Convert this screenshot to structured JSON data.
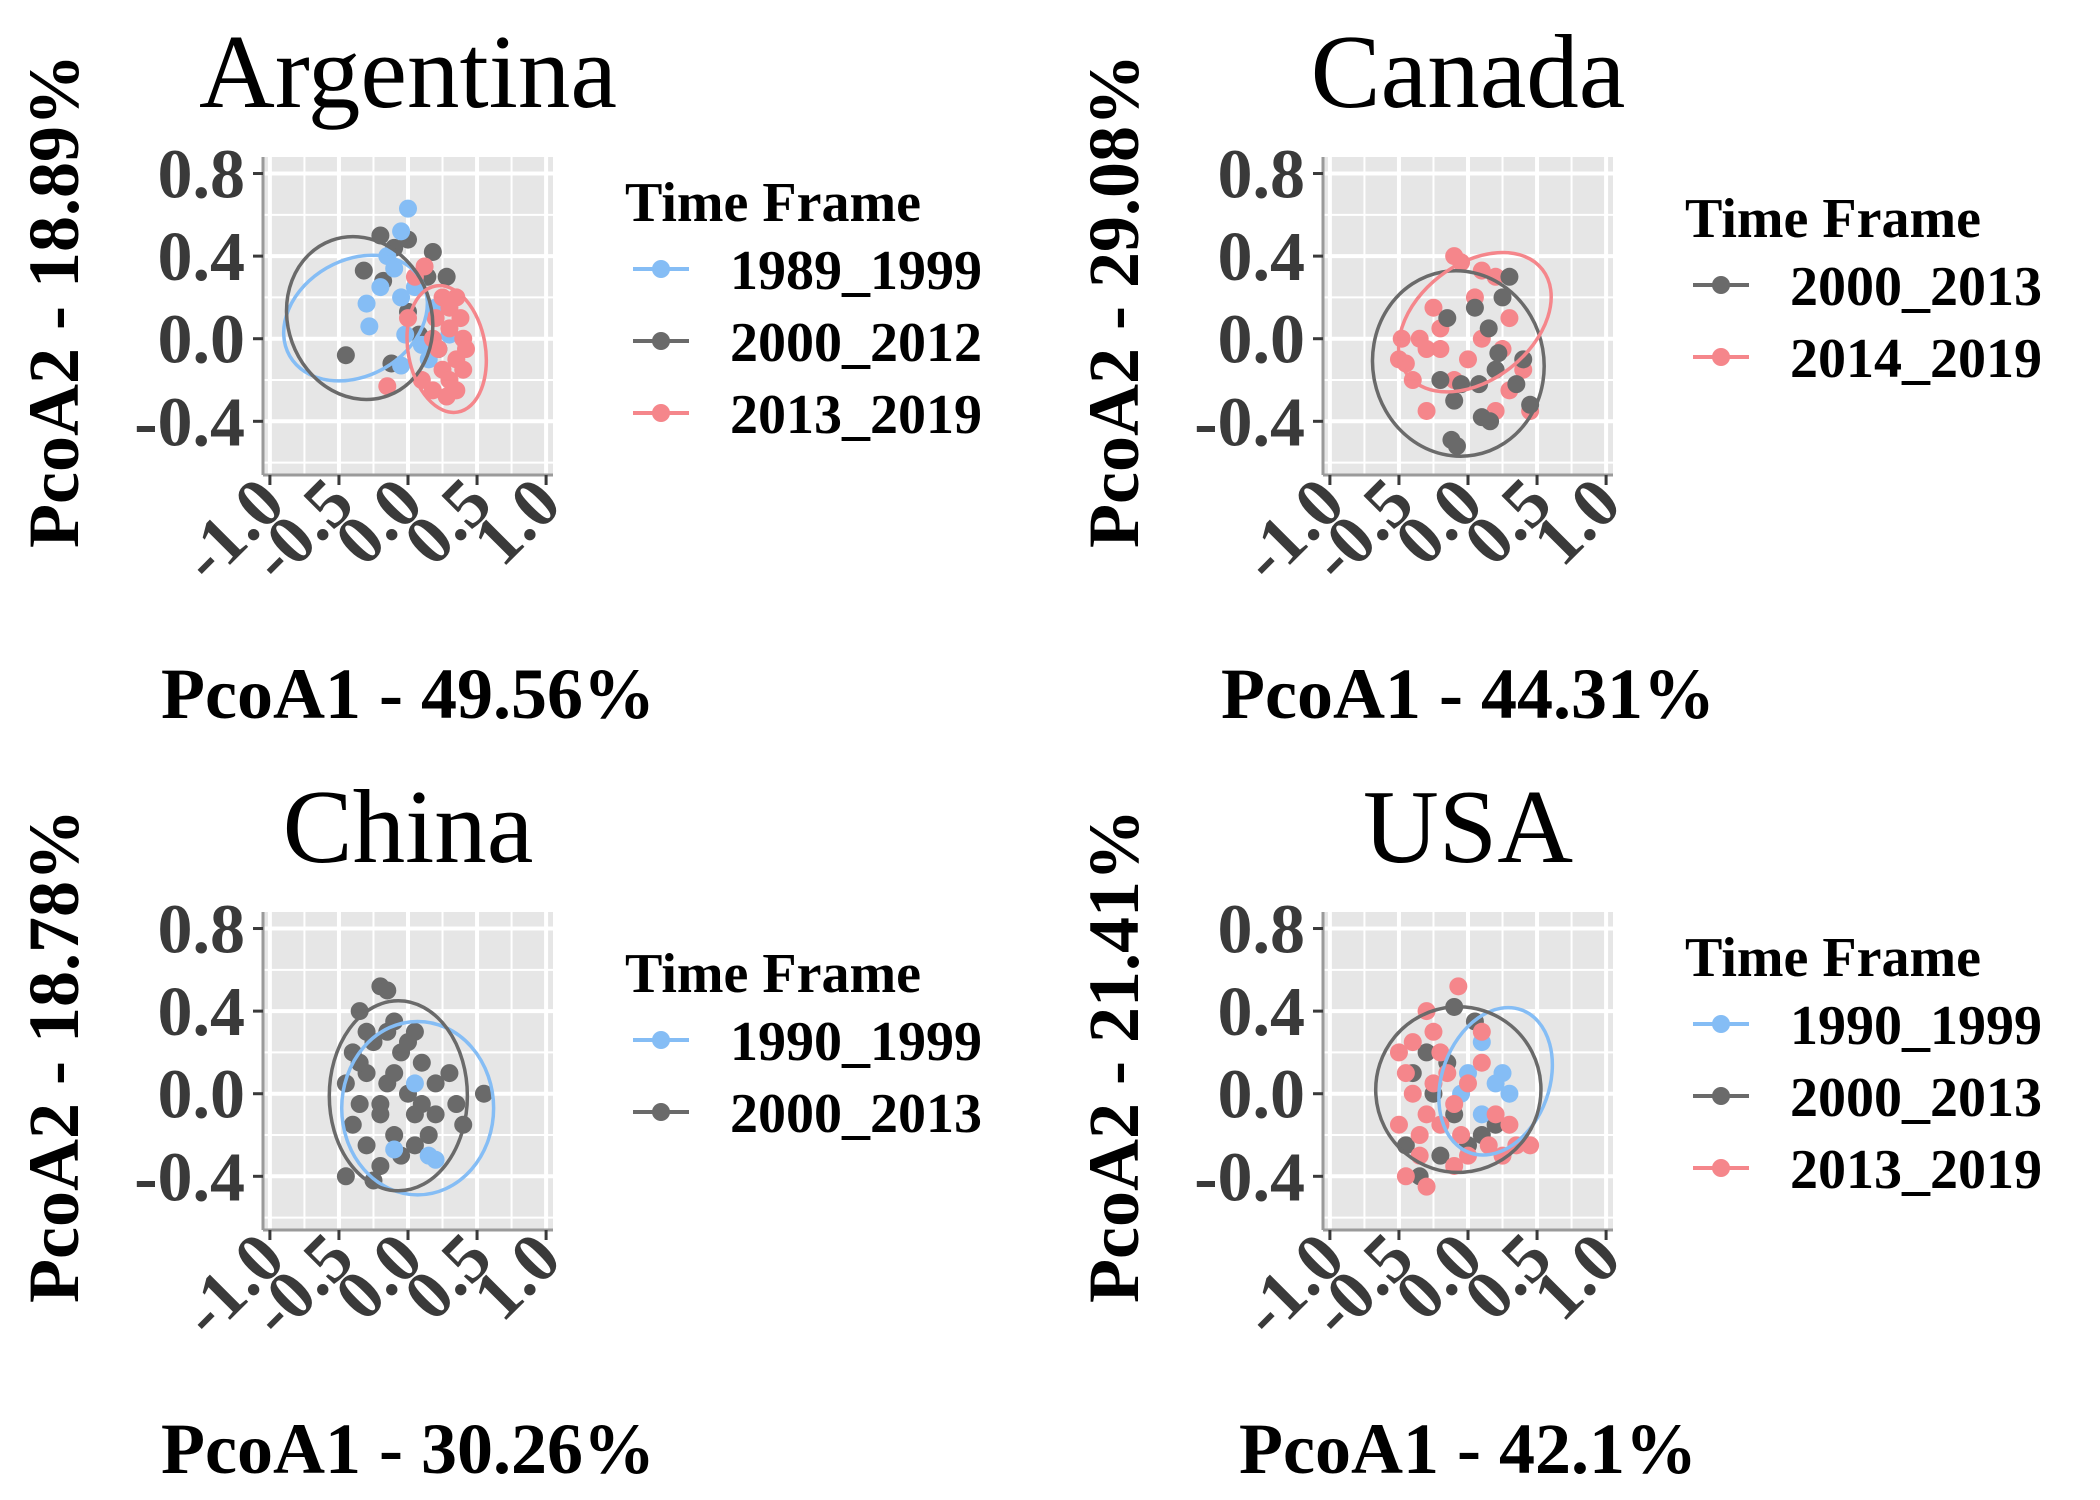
{
  "colors": {
    "blue": "#85BDF5",
    "gray": "#6A6A6A",
    "pink": "#F5868B",
    "panel_bg": "#E6E6E6",
    "grid": "#FFFFFF"
  },
  "chart_data": [
    {
      "type": "scatter",
      "title": "Argentina",
      "xlabel": "PcoA1 - 49.56%",
      "ylabel": "PcoA2 - 18.89%",
      "xlim": [
        -1.05,
        1.05
      ],
      "ylim": [
        -0.66,
        0.88
      ],
      "xticks": [
        -1.0,
        -0.5,
        0.0,
        0.5,
        1.0
      ],
      "xtick_labels": [
        "-1.0",
        "-0.5",
        "0.0",
        "0.5",
        "1.0"
      ],
      "yticks": [
        -0.4,
        0.0,
        0.4,
        0.8
      ],
      "ytick_labels": [
        "-0.4",
        "0.0",
        "0.4",
        "0.8"
      ],
      "grid": true,
      "legend": {
        "title": "Time Frame",
        "placement": "right"
      },
      "series": [
        {
          "name": "1989_1999",
          "color": "blue",
          "ellipse": {
            "cx": -0.38,
            "cy": 0.1,
            "rx": 0.55,
            "ry": 0.28,
            "angle": -30
          },
          "points": [
            [
              0.0,
              0.63
            ],
            [
              -0.05,
              0.52
            ],
            [
              -0.15,
              0.4
            ],
            [
              -0.1,
              0.34
            ],
            [
              -0.3,
              0.17
            ],
            [
              -0.28,
              0.06
            ],
            [
              -0.05,
              0.2
            ],
            [
              0.05,
              0.25
            ],
            [
              0.3,
              0.02
            ],
            [
              0.1,
              -0.03
            ],
            [
              -0.05,
              -0.13
            ],
            [
              0.15,
              -0.1
            ],
            [
              -0.02,
              0.02
            ],
            [
              0.2,
              0.15
            ],
            [
              -0.2,
              0.25
            ]
          ]
        },
        {
          "name": "2000_2012",
          "color": "gray",
          "ellipse": {
            "cx": -0.35,
            "cy": 0.1,
            "rx": 0.52,
            "ry": 0.4,
            "angle": -20
          },
          "points": [
            [
              -0.45,
              -0.08
            ],
            [
              -0.32,
              0.33
            ],
            [
              -0.2,
              0.5
            ],
            [
              -0.1,
              0.44
            ],
            [
              0.0,
              0.48
            ],
            [
              0.18,
              0.42
            ],
            [
              0.14,
              0.3
            ],
            [
              0.28,
              0.3
            ],
            [
              -0.12,
              -0.12
            ],
            [
              0.08,
              0.02
            ],
            [
              0.22,
              -0.05
            ],
            [
              0.0,
              0.13
            ],
            [
              -0.18,
              0.28
            ]
          ]
        },
        {
          "name": "2013_2019",
          "color": "pink",
          "ellipse": {
            "cx": 0.28,
            "cy": -0.05,
            "rx": 0.28,
            "ry": 0.31,
            "angle": -10
          },
          "points": [
            [
              0.3,
              0.15
            ],
            [
              0.38,
              0.1
            ],
            [
              0.3,
              0.05
            ],
            [
              0.4,
              0.0
            ],
            [
              0.22,
              -0.05
            ],
            [
              0.35,
              -0.1
            ],
            [
              0.25,
              -0.15
            ],
            [
              0.4,
              -0.15
            ],
            [
              0.3,
              -0.2
            ],
            [
              0.18,
              -0.25
            ],
            [
              0.35,
              -0.25
            ],
            [
              0.05,
              0.3
            ],
            [
              0.12,
              0.35
            ],
            [
              0.25,
              0.2
            ],
            [
              0.18,
              0.0
            ],
            [
              0.42,
              -0.05
            ],
            [
              0.1,
              -0.2
            ],
            [
              0.0,
              0.1
            ],
            [
              -0.15,
              -0.23
            ],
            [
              0.28,
              -0.28
            ],
            [
              0.35,
              0.2
            ],
            [
              0.2,
              0.1
            ]
          ]
        }
      ]
    },
    {
      "type": "scatter",
      "title": "Canada",
      "xlabel": "PcoA1 - 44.31%",
      "ylabel": "PcoA2 - 29.08%",
      "xlim": [
        -1.05,
        1.05
      ],
      "ylim": [
        -0.66,
        0.88
      ],
      "xticks": [
        -1.0,
        -0.5,
        0.0,
        0.5,
        1.0
      ],
      "xtick_labels": [
        "-1.0",
        "-0.5",
        "0.0",
        "0.5",
        "1.0"
      ],
      "yticks": [
        -0.4,
        0.0,
        0.4,
        0.8
      ],
      "ytick_labels": [
        "-0.4",
        "0.0",
        "0.4",
        "0.8"
      ],
      "grid": true,
      "legend": {
        "title": "Time Frame",
        "placement": "right"
      },
      "series": [
        {
          "name": "2000_2013",
          "color": "gray",
          "ellipse": {
            "cx": -0.07,
            "cy": -0.12,
            "rx": 0.62,
            "ry": 0.45,
            "angle": -10
          },
          "points": [
            [
              -0.08,
              -0.52
            ],
            [
              -0.12,
              -0.49
            ],
            [
              0.1,
              -0.38
            ],
            [
              0.16,
              -0.4
            ],
            [
              -0.1,
              -0.3
            ],
            [
              -0.05,
              -0.22
            ],
            [
              0.08,
              -0.22
            ],
            [
              0.35,
              -0.22
            ],
            [
              0.45,
              -0.32
            ],
            [
              -0.2,
              -0.2
            ],
            [
              0.22,
              -0.07
            ],
            [
              0.15,
              0.05
            ],
            [
              0.05,
              0.15
            ],
            [
              -0.15,
              0.1
            ],
            [
              0.3,
              0.3
            ],
            [
              0.25,
              0.2
            ],
            [
              0.4,
              -0.1
            ],
            [
              0.2,
              -0.15
            ]
          ]
        },
        {
          "name": "2014_2019",
          "color": "pink",
          "ellipse": {
            "cx": 0.05,
            "cy": 0.08,
            "rx": 0.62,
            "ry": 0.28,
            "angle": -38
          },
          "points": [
            [
              -0.1,
              0.4
            ],
            [
              -0.05,
              0.37
            ],
            [
              0.1,
              0.33
            ],
            [
              0.2,
              0.3
            ],
            [
              -0.5,
              -0.1
            ],
            [
              -0.48,
              0.0
            ],
            [
              -0.35,
              0.0
            ],
            [
              -0.2,
              0.05
            ],
            [
              -0.3,
              -0.05
            ],
            [
              -0.4,
              -0.2
            ],
            [
              -0.3,
              -0.35
            ],
            [
              -0.1,
              -0.2
            ],
            [
              0.0,
              -0.1
            ],
            [
              -0.2,
              -0.05
            ],
            [
              0.1,
              0.0
            ],
            [
              0.3,
              0.1
            ],
            [
              0.4,
              -0.15
            ],
            [
              0.3,
              -0.25
            ],
            [
              0.45,
              -0.35
            ],
            [
              0.25,
              -0.05
            ],
            [
              -0.25,
              0.15
            ],
            [
              0.05,
              0.2
            ],
            [
              0.2,
              -0.35
            ],
            [
              -0.45,
              -0.12
            ]
          ]
        }
      ]
    },
    {
      "type": "scatter",
      "title": "China",
      "xlabel": "PcoA1 - 30.26%",
      "ylabel": "PcoA2 - 18.78%",
      "xlim": [
        -1.05,
        1.05
      ],
      "ylim": [
        -0.66,
        0.88
      ],
      "xticks": [
        -1.0,
        -0.5,
        0.0,
        0.5,
        1.0
      ],
      "xtick_labels": [
        "-1.0",
        "-0.5",
        "0.0",
        "0.5",
        "1.0"
      ],
      "yticks": [
        -0.4,
        0.0,
        0.4,
        0.8
      ],
      "ytick_labels": [
        "-0.4",
        "0.0",
        "0.4",
        "0.8"
      ],
      "grid": true,
      "legend": {
        "title": "Time Frame",
        "placement": "right"
      },
      "series": [
        {
          "name": "1990_1999",
          "color": "blue",
          "ellipse": {
            "cx": 0.07,
            "cy": -0.07,
            "rx": 0.55,
            "ry": 0.42,
            "angle": 0
          },
          "points": [
            [
              0.15,
              -0.3
            ],
            [
              0.2,
              -0.32
            ],
            [
              -0.1,
              -0.27
            ],
            [
              0.05,
              0.05
            ]
          ]
        },
        {
          "name": "2000_2013",
          "color": "gray",
          "ellipse": {
            "cx": -0.07,
            "cy": -0.01,
            "rx": 0.5,
            "ry": 0.46,
            "angle": 0
          },
          "points": [
            [
              -0.2,
              0.52
            ],
            [
              -0.15,
              0.5
            ],
            [
              -0.35,
              0.4
            ],
            [
              -0.1,
              0.35
            ],
            [
              0.05,
              0.3
            ],
            [
              -0.25,
              0.25
            ],
            [
              -0.4,
              0.2
            ],
            [
              -0.05,
              0.2
            ],
            [
              0.1,
              0.15
            ],
            [
              -0.3,
              0.1
            ],
            [
              -0.45,
              0.05
            ],
            [
              -0.15,
              0.05
            ],
            [
              0.0,
              0.0
            ],
            [
              0.2,
              0.05
            ],
            [
              -0.35,
              -0.05
            ],
            [
              -0.2,
              -0.1
            ],
            [
              0.05,
              -0.1
            ],
            [
              -0.4,
              -0.15
            ],
            [
              -0.1,
              -0.2
            ],
            [
              0.15,
              -0.2
            ],
            [
              -0.3,
              -0.25
            ],
            [
              -0.2,
              -0.35
            ],
            [
              -0.05,
              -0.3
            ],
            [
              -0.45,
              -0.4
            ],
            [
              -0.25,
              -0.42
            ],
            [
              0.35,
              -0.05
            ],
            [
              0.3,
              0.1
            ],
            [
              -0.1,
              0.1
            ],
            [
              -0.2,
              -0.05
            ],
            [
              0.1,
              -0.05
            ],
            [
              -0.3,
              0.3
            ],
            [
              0.0,
              0.25
            ],
            [
              0.55,
              0.0
            ],
            [
              0.4,
              -0.15
            ],
            [
              -0.15,
              0.3
            ],
            [
              0.05,
              -0.25
            ],
            [
              -0.35,
              0.15
            ],
            [
              0.2,
              -0.1
            ]
          ]
        }
      ]
    },
    {
      "type": "scatter",
      "title": "USA",
      "xlabel": "PcoA1 - 42.1%",
      "ylabel": "PcoA2 - 21.41%",
      "xlim": [
        -1.05,
        1.05
      ],
      "ylim": [
        -0.66,
        0.88
      ],
      "xticks": [
        -1.0,
        -0.5,
        0.0,
        0.5,
        1.0
      ],
      "xtick_labels": [
        "-1.0",
        "-0.5",
        "0.0",
        "0.5",
        "1.0"
      ],
      "yticks": [
        -0.4,
        0.0,
        0.4,
        0.8
      ],
      "ytick_labels": [
        "-0.4",
        "0.0",
        "0.4",
        "0.8"
      ],
      "grid": true,
      "legend": {
        "title": "Time Frame",
        "placement": "right"
      },
      "series": [
        {
          "name": "1990_1999",
          "color": "blue",
          "ellipse": {
            "cx": 0.2,
            "cy": 0.06,
            "rx": 0.55,
            "ry": 0.26,
            "angle": -70
          },
          "points": [
            [
              0.1,
              0.25
            ],
            [
              0.2,
              0.05
            ],
            [
              0.3,
              0.0
            ],
            [
              0.1,
              -0.1
            ],
            [
              0.0,
              0.1
            ],
            [
              0.25,
              0.1
            ],
            [
              -0.05,
              0.0
            ]
          ]
        },
        {
          "name": "2000_2013",
          "color": "gray",
          "ellipse": {
            "cx": -0.07,
            "cy": 0.02,
            "rx": 0.6,
            "ry": 0.4,
            "angle": -72
          },
          "points": [
            [
              -0.1,
              0.42
            ],
            [
              0.05,
              0.35
            ],
            [
              -0.3,
              0.2
            ],
            [
              -0.2,
              -0.3
            ],
            [
              -0.35,
              -0.4
            ],
            [
              0.1,
              -0.2
            ],
            [
              -0.45,
              -0.25
            ],
            [
              -0.1,
              -0.1
            ],
            [
              0.2,
              -0.15
            ],
            [
              -0.25,
              0.0
            ],
            [
              0.0,
              -0.25
            ],
            [
              -0.15,
              0.15
            ],
            [
              -0.4,
              0.1
            ]
          ]
        },
        {
          "name": "2013_2019",
          "color": "pink",
          "ellipse": null,
          "points": [
            [
              -0.07,
              0.52
            ],
            [
              -0.3,
              0.4
            ],
            [
              -0.25,
              0.3
            ],
            [
              0.1,
              0.3
            ],
            [
              -0.45,
              0.1
            ],
            [
              -0.4,
              0.0
            ],
            [
              -0.3,
              -0.1
            ],
            [
              -0.5,
              -0.15
            ],
            [
              -0.35,
              -0.2
            ],
            [
              -0.2,
              -0.15
            ],
            [
              -0.1,
              -0.05
            ],
            [
              0.0,
              0.05
            ],
            [
              -0.15,
              0.1
            ],
            [
              -0.45,
              -0.4
            ],
            [
              -0.3,
              -0.45
            ],
            [
              -0.1,
              -0.35
            ],
            [
              0.0,
              -0.3
            ],
            [
              0.15,
              -0.25
            ],
            [
              0.25,
              -0.3
            ],
            [
              0.35,
              -0.25
            ],
            [
              0.45,
              -0.25
            ],
            [
              0.2,
              -0.1
            ],
            [
              -0.4,
              0.25
            ],
            [
              -0.2,
              0.2
            ],
            [
              0.1,
              0.15
            ],
            [
              -0.35,
              -0.3
            ],
            [
              -0.05,
              -0.2
            ],
            [
              0.3,
              -0.15
            ],
            [
              -0.25,
              0.05
            ],
            [
              -0.5,
              0.2
            ]
          ]
        }
      ]
    }
  ]
}
